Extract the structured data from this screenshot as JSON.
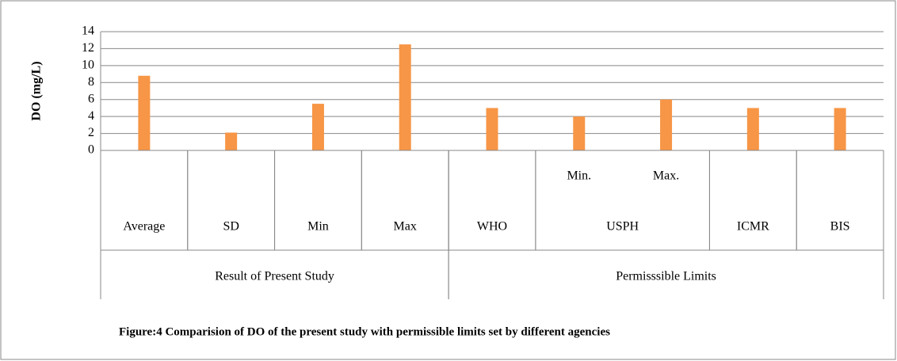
{
  "chart_data": {
    "type": "bar",
    "caption": "Figure:4 Comparision of DO of the present study with permissible limits set by different agencies",
    "y_label": "DO (mg/L)",
    "category_tree": [
      {
        "name": "Result of Present Study",
        "children": [
          {
            "name": "Average"
          },
          {
            "name": "SD"
          },
          {
            "name": "Min"
          },
          {
            "name": "Max"
          }
        ]
      },
      {
        "name": "Permisssible Limits",
        "children": [
          {
            "name": "WHO"
          },
          {
            "name": "USPH",
            "children": [
              {
                "name": "Min."
              },
              {
                "name": "Max."
              }
            ]
          },
          {
            "name": "ICMR"
          },
          {
            "name": "BIS"
          }
        ]
      }
    ],
    "values": [
      8.8,
      2.1,
      5.5,
      12.5,
      5,
      4,
      6,
      5,
      5
    ],
    "color": "#f79646",
    "ylim": [
      0,
      14
    ],
    "yticks": [
      0,
      2,
      4,
      6,
      8,
      10,
      12,
      14
    ],
    "grid": true
  }
}
